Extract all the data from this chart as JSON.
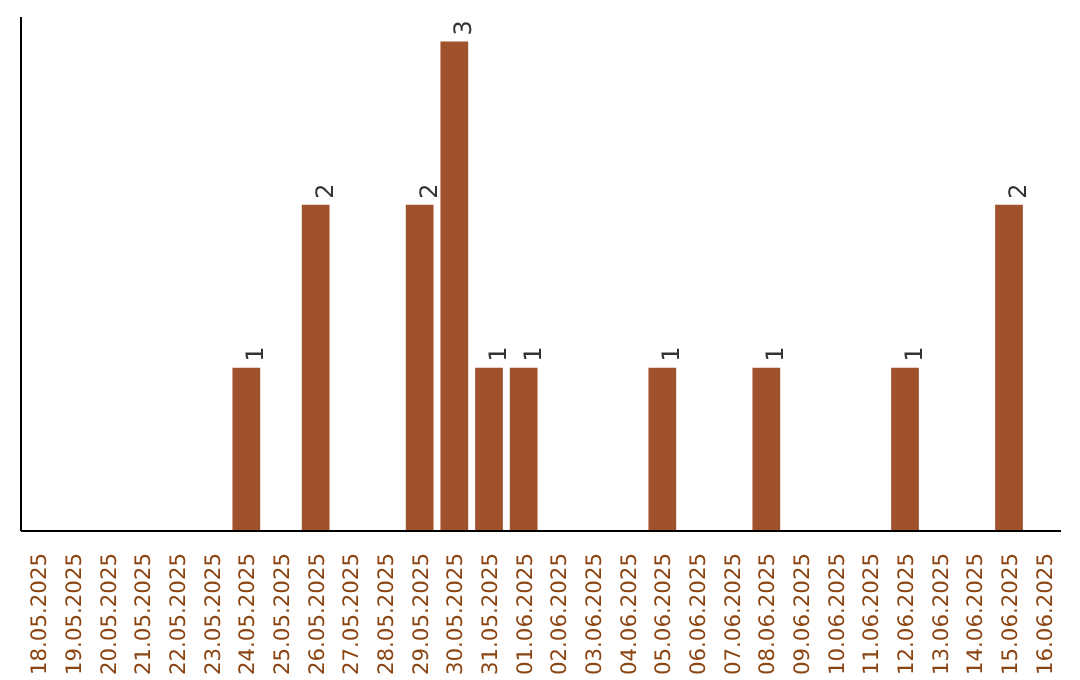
{
  "chart_data": {
    "type": "bar",
    "categories": [
      "18.05.2025",
      "19.05.2025",
      "20.05.2025",
      "21.05.2025",
      "22.05.2025",
      "23.05.2025",
      "24.05.2025",
      "25.05.2025",
      "26.05.2025",
      "27.05.2025",
      "28.05.2025",
      "29.05.2025",
      "30.05.2025",
      "31.05.2025",
      "01.06.2025",
      "02.06.2025",
      "03.06.2025",
      "04.06.2025",
      "05.06.2025",
      "06.06.2025",
      "07.06.2025",
      "08.06.2025",
      "09.06.2025",
      "10.06.2025",
      "11.06.2025",
      "12.06.2025",
      "13.06.2025",
      "14.06.2025",
      "15.06.2025",
      "16.06.2025"
    ],
    "values": [
      0,
      0,
      0,
      0,
      0,
      0,
      1,
      0,
      2,
      0,
      0,
      2,
      3,
      1,
      1,
      0,
      0,
      0,
      1,
      0,
      0,
      1,
      0,
      0,
      0,
      1,
      0,
      0,
      2,
      0
    ],
    "value_labels": [
      null,
      null,
      null,
      null,
      null,
      null,
      "1",
      null,
      "2",
      null,
      null,
      "2",
      "3",
      "1",
      "1",
      null,
      null,
      null,
      "1",
      null,
      null,
      "1",
      null,
      null,
      null,
      "1",
      null,
      null,
      "2",
      null
    ],
    "color": "#a0522d",
    "grid": false
  }
}
